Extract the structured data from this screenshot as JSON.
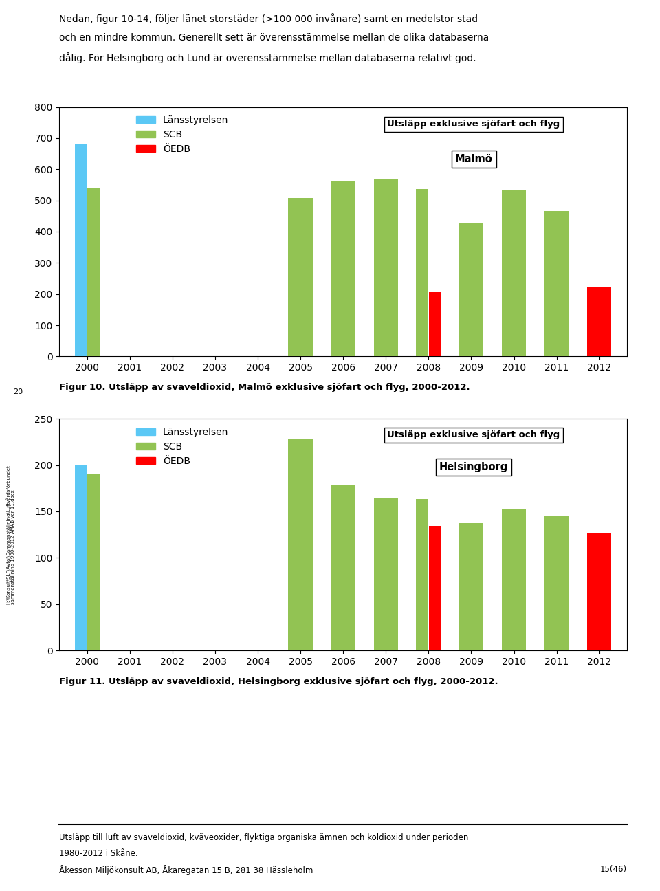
{
  "chart_data": [
    {
      "type": "bar",
      "title": "Malmö",
      "subtitle": "Utsläpp exklusive sjöfart och flyg",
      "annotations": [
        "Figur 10. Utsläpp av svaveldioxid, Malmö exklusive sjöfart och flyg, 2000-2012."
      ],
      "categories": [
        "2000",
        "2001",
        "2002",
        "2003",
        "2004",
        "2005",
        "2006",
        "2007",
        "2008",
        "2009",
        "2010",
        "2011",
        "2012"
      ],
      "series": [
        {
          "name": "Länsstyrelsen",
          "color": "#5BC8F5",
          "values": [
            683,
            0,
            0,
            0,
            0,
            0,
            0,
            0,
            0,
            0,
            0,
            0,
            0
          ]
        },
        {
          "name": "SCB",
          "color": "#92C353",
          "values": [
            540,
            0,
            0,
            0,
            0,
            508,
            560,
            567,
            537,
            427,
            535,
            467,
            0
          ]
        },
        {
          "name": "ÖEDB",
          "color": "#FF0000",
          "values": [
            0,
            0,
            0,
            0,
            0,
            0,
            0,
            0,
            208,
            0,
            0,
            0,
            223
          ]
        }
      ],
      "ylim": [
        0,
        800
      ],
      "yticks": [
        0,
        100,
        200,
        300,
        400,
        500,
        600,
        700,
        800
      ],
      "grid": false,
      "legend": "upper left"
    },
    {
      "type": "bar",
      "title": "Helsingborg",
      "subtitle": "Utsläpp exklusive sjöfart och flyg",
      "annotations": [
        "Figur 11. Utsläpp av svaveldioxid, Helsingborg exklusive sjöfart och flyg, 2000-2012."
      ],
      "categories": [
        "2000",
        "2001",
        "2002",
        "2003",
        "2004",
        "2005",
        "2006",
        "2007",
        "2008",
        "2009",
        "2010",
        "2011",
        "2012"
      ],
      "series": [
        {
          "name": "Länsstyrelsen",
          "color": "#5BC8F5",
          "values": [
            200,
            0,
            0,
            0,
            0,
            0,
            0,
            0,
            0,
            0,
            0,
            0,
            0
          ]
        },
        {
          "name": "SCB",
          "color": "#92C353",
          "values": [
            190,
            0,
            0,
            0,
            0,
            228,
            178,
            164,
            163,
            137,
            152,
            145,
            0
          ]
        },
        {
          "name": "ÖEDB",
          "color": "#FF0000",
          "values": [
            0,
            0,
            0,
            0,
            0,
            0,
            0,
            0,
            134,
            0,
            0,
            0,
            127
          ]
        }
      ],
      "ylim": [
        0,
        250
      ],
      "yticks": [
        0,
        50,
        100,
        150,
        200,
        250
      ],
      "grid": false,
      "legend": "upper left"
    }
  ],
  "header": [
    "Nedan, figur 10-14, följer länet storstäder (>100 000 invånare) samt en medelstor stad",
    "och en mindre kommun. Generellt sett är överensstämmelse mellan de olika databaserna",
    "dålig. För Helsingborg och Lund är överensstämmelse mellan databaserna relativt god."
  ],
  "footer": [
    "Utsläpp till luft av svaveldioxid, kväveoxider, flyktiga organiska ämnen och koldioxid under perioden",
    "1980-2012 i Skåne.",
    "Åkesson Miljökonsult AB, Åkaregatan 15 B, 281 38 Hässleholm"
  ],
  "page": "15(46)",
  "sidebar": [
    "20",
    "H:\\Konsult\\SLF\\Avtal\\Sammanställning\\Luftvårdsförbundet",
    "sammanställning 1990-2012 AMAB ver 11.docx"
  ]
}
